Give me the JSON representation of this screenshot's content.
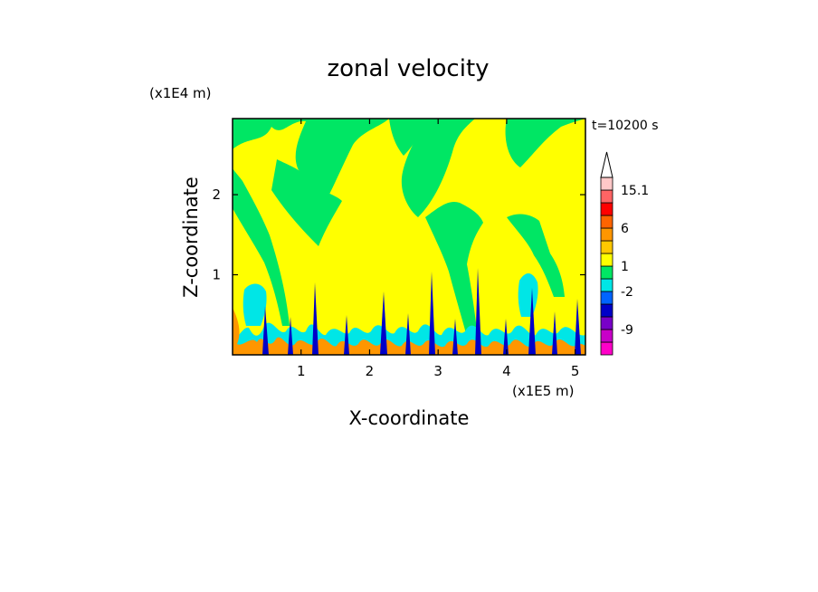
{
  "chart_data": {
    "type": "heatmap",
    "title": "zonal velocity",
    "xlabel": "X-coordinate",
    "ylabel": "Z-coordinate",
    "x_scale_label": "(x1E5 m)",
    "y_scale_label": "(x1E4 m)",
    "time_label": "t=10200 s",
    "xlim": [
      0,
      5.15
    ],
    "ylim": [
      0,
      2.95
    ],
    "x_ticks": [
      "1",
      "2",
      "3",
      "4",
      "5"
    ],
    "y_ticks": [
      "1",
      "2"
    ],
    "colorbar": {
      "labels": [
        "15.1",
        "6",
        "1",
        "-2",
        "-9"
      ],
      "levels": [
        {
          "color": "#ff00c8"
        },
        {
          "color": "#c800c8"
        },
        {
          "color": "#7800c8"
        },
        {
          "color": "#0000c8"
        },
        {
          "color": "#0064ff"
        },
        {
          "color": "#00e6e6"
        },
        {
          "color": "#00e664"
        },
        {
          "color": "#ffff00"
        },
        {
          "color": "#ffc800"
        },
        {
          "color": "#ff9600"
        },
        {
          "color": "#ff6400"
        },
        {
          "color": "#ff0000"
        },
        {
          "color": "#ff6464"
        },
        {
          "color": "#ffc8c8"
        },
        {
          "color": "#ffffff"
        }
      ],
      "extend": "max"
    },
    "field_colors": {
      "background": "#00e664",
      "positive_weak": "#ffff00",
      "shear_negative": "#00e6e6",
      "core_negative": "#0000c8",
      "positive_strong": "#ff9600"
    }
  }
}
